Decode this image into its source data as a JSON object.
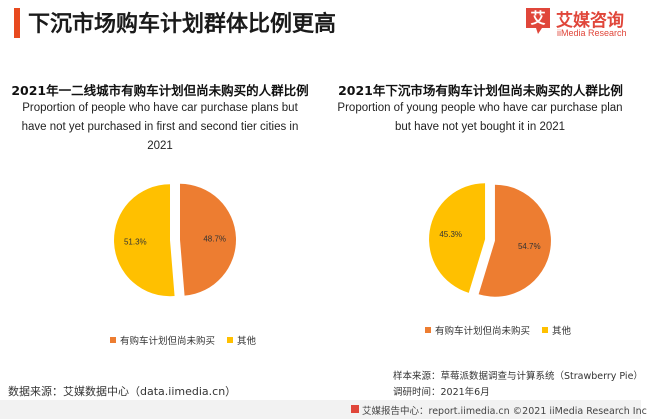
{
  "header": {
    "title": "下沉市场购车计划群体比例更高",
    "accent_color": "#e84a1f"
  },
  "logo": {
    "mark": "艾",
    "name_cn": "艾媒咨询",
    "name_en": "iiMedia Research",
    "color": "#e0463a"
  },
  "chart_data": [
    {
      "type": "pie",
      "title": "2021年一二线城市有购车计划但尚未购买的人群比例",
      "subtitle": "Proportion of people who have car purchase plans but have not yet purchased in first and second tier cities in 2021",
      "categories": [
        "有购车计划但尚未购买",
        "其他"
      ],
      "values": [
        48.7,
        51.3
      ],
      "labels": [
        "48.7%",
        "51.3%"
      ],
      "colors": [
        "#ed7d31",
        "#ffc000"
      ],
      "legend_position": "bottom"
    },
    {
      "type": "pie",
      "title": "2021年下沉市场有购车计划但尚未购买的人群比例",
      "subtitle": "Proportion of young people who have car purchase plan but have not yet bought it in 2021",
      "categories": [
        "有购车计划但尚未购买",
        "其他"
      ],
      "values": [
        54.7,
        45.3
      ],
      "labels": [
        "54.7%",
        "45.3%"
      ],
      "colors": [
        "#ed7d31",
        "#ffc000"
      ],
      "legend_position": "bottom"
    }
  ],
  "source": {
    "left": "数据来源：艾媒数据中心（data.iimedia.cn）",
    "sample": "样本来源：草莓派数据调查与计算系统（Strawberry Pie）",
    "period": "调研时间：2021年6月"
  },
  "footer": {
    "text": "艾媒报告中心：report.iimedia.cn  ©2021  iiMedia Research Inc",
    "icon": "report-icon"
  }
}
